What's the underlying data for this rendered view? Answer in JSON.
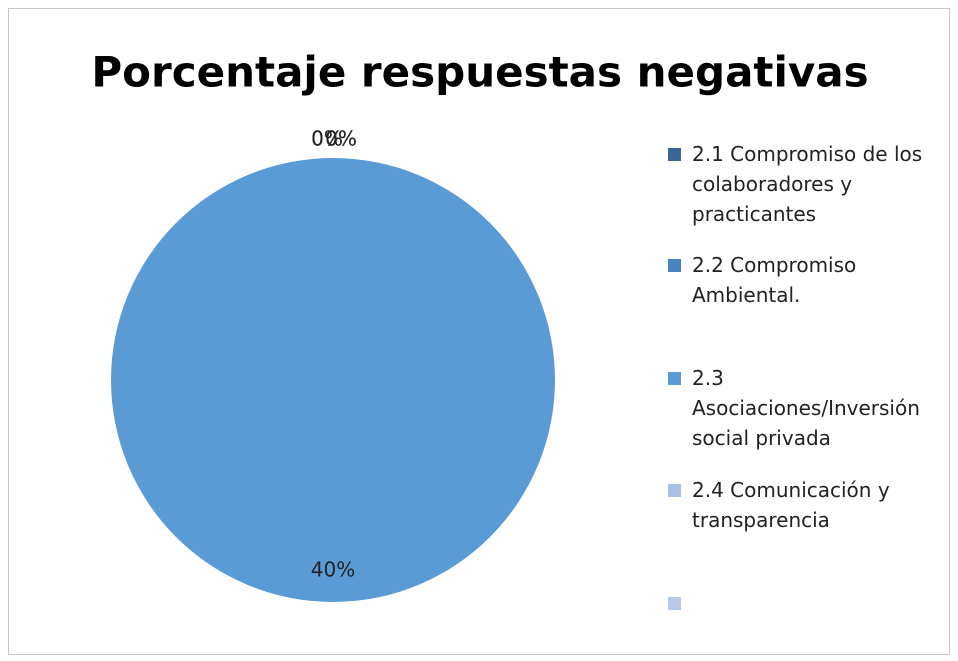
{
  "chart_data": {
    "type": "pie",
    "title": "Porcentaje respuestas negativas",
    "categories": [
      "2.1 Compromiso de los colaboradores y practicantes",
      "2.2 Compromiso Ambiental.",
      "2.3 Asociaciones/Inversión social privada",
      "2.4 Comunicación y transparencia",
      null
    ],
    "values": [
      0,
      0,
      40,
      0,
      0
    ],
    "value_labels": [
      "0%",
      "0%",
      "40%",
      "0%",
      "0%"
    ],
    "colors": [
      "#3a6796",
      "#4a83bd",
      "#5b9bd5",
      "#a9c1e5",
      "#b7c9e8"
    ],
    "legend": "right"
  }
}
